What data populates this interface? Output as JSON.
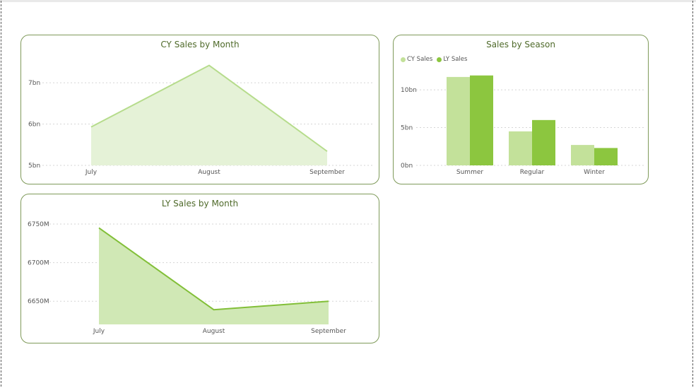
{
  "colors": {
    "cy": "#c3e19a",
    "ly": "#8cc63f",
    "cy_area": "#e5f2d7",
    "ly_area": "#d0e8b5",
    "cy_line": "#b6dc8c",
    "ly_line": "#82bf38",
    "card_border": "#7f9a5a",
    "title": "#4f6a2a",
    "grid": "#d5d5d5"
  },
  "chart_data": [
    {
      "id": "cy",
      "type": "area",
      "title": "CY Sales by Month",
      "categories": [
        "July",
        "August",
        "September"
      ],
      "series": [
        {
          "values": [
            5.93,
            7.42,
            5.34
          ]
        }
      ],
      "ylim": [
        5,
        7.6
      ],
      "yticks": [
        5,
        6,
        7
      ],
      "ytick_labels": [
        "5bn",
        "6bn",
        "7bn"
      ],
      "grid": true
    },
    {
      "id": "ly",
      "type": "area",
      "title": "LY Sales by Month",
      "categories": [
        "July",
        "August",
        "September"
      ],
      "series": [
        {
          "values": [
            6745,
            6639,
            6650
          ]
        }
      ],
      "ylim": [
        6620,
        6750
      ],
      "yticks": [
        6650,
        6700,
        6750
      ],
      "ytick_labels": [
        "6650M",
        "6700M",
        "6750M"
      ],
      "grid": true
    },
    {
      "id": "season",
      "type": "bar",
      "title": "Sales by Season",
      "categories": [
        "Summer",
        "Regular",
        "Winter"
      ],
      "series": [
        {
          "name": "CY Sales",
          "values": [
            11.7,
            4.5,
            2.7
          ]
        },
        {
          "name": "LY Sales",
          "values": [
            11.9,
            6.0,
            2.3
          ]
        }
      ],
      "ylim": [
        0,
        13
      ],
      "yticks": [
        0,
        5,
        10
      ],
      "ytick_labels": [
        "0bn",
        "5bn",
        "10bn"
      ],
      "legend": "top-left",
      "grid": true
    }
  ]
}
